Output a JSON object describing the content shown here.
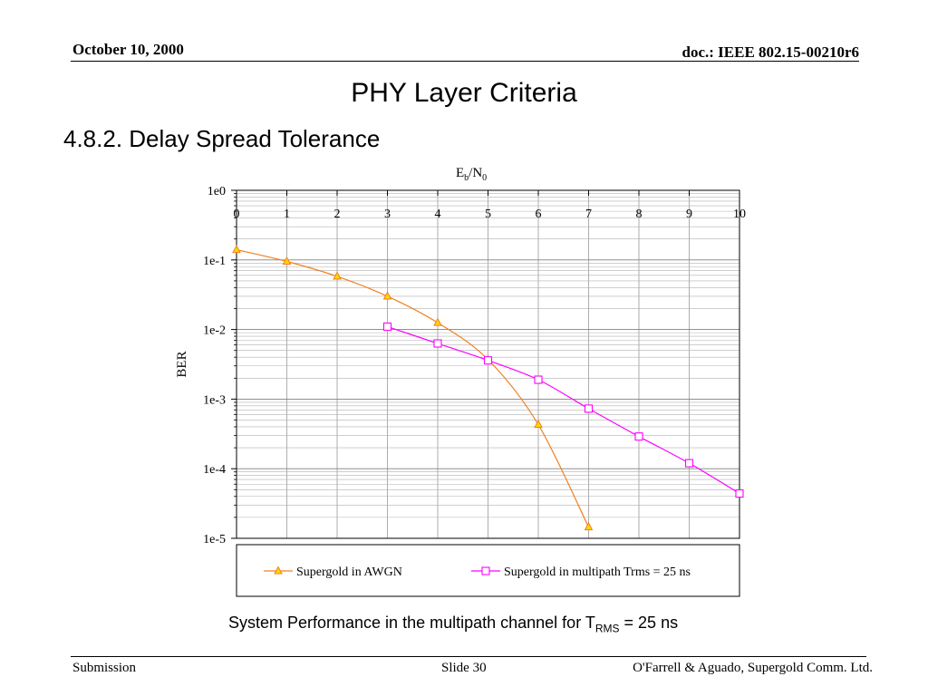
{
  "header": {
    "date": "October 10, 2000",
    "doc": "doc.: IEEE 802.15-00210r6"
  },
  "slide": {
    "title": "PHY Layer Criteria",
    "subtitle": "4.8.2. Delay Spread Tolerance",
    "caption_main": "System Performance in the multipath channel for T",
    "caption_sub": "RMS",
    "caption_tail": " = 25 ns"
  },
  "footer": {
    "left": "Submission",
    "middle": "Slide 30",
    "right": "O'Farrell & Aguado, Supergold Comm. Ltd."
  },
  "chart_data": {
    "type": "line",
    "xlabel_main": "E",
    "xlabel_sub1": "b",
    "xlabel_mid": "/N",
    "xlabel_sub2": "0",
    "ylabel": "BER",
    "xlim": [
      0,
      10
    ],
    "ylim": [
      1e-05,
      1
    ],
    "yscale": "log",
    "x_ticks": [
      "0",
      "1",
      "2",
      "3",
      "4",
      "5",
      "6",
      "7",
      "8",
      "9",
      "10"
    ],
    "y_ticks": [
      "1e0",
      "1e-1",
      "1e-2",
      "1e-3",
      "1e-4",
      "1e-5"
    ],
    "grid": true,
    "legend_position": "bottom",
    "series": [
      {
        "name": "Supergold in AWGN",
        "color": "#f08020",
        "marker": "triangle",
        "marker_fill": "#ffd700",
        "x": [
          0,
          1,
          2,
          3,
          4,
          5,
          6,
          7
        ],
        "y": [
          0.14,
          0.095,
          0.058,
          0.03,
          0.0125,
          0.0037,
          0.00043,
          1.45e-05
        ]
      },
      {
        "name": "Supergold in multipath Trms = 25 ns",
        "color": "#ff00ff",
        "marker": "square",
        "marker_fill": "#ffffff",
        "x": [
          3,
          4,
          5,
          6,
          7,
          8,
          9,
          10
        ],
        "y": [
          0.011,
          0.0063,
          0.0036,
          0.0019,
          0.00073,
          0.00029,
          0.00012,
          4.4e-05
        ]
      }
    ]
  }
}
